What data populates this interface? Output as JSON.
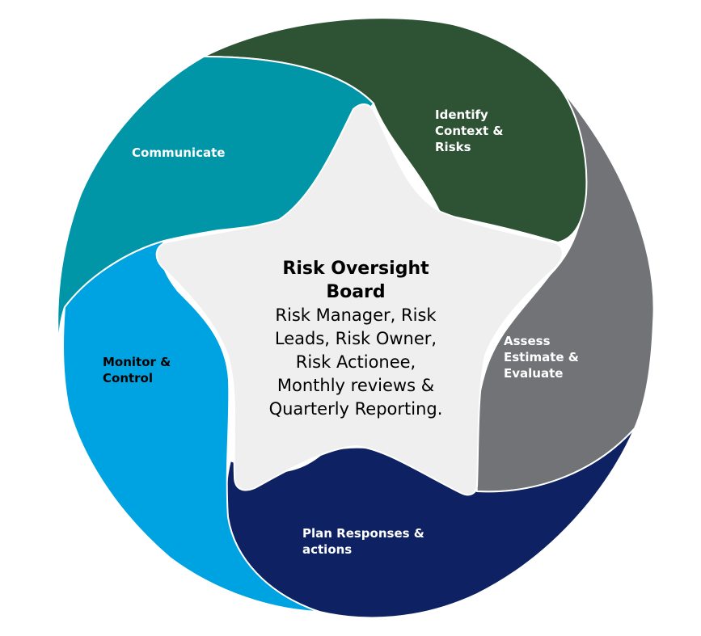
{
  "diagram": {
    "center": {
      "title": "Risk Oversight\nBoard",
      "body": "Risk Manager, Risk\nLeads, Risk Owner,\nRisk Actionee,\nMonthly reviews &\nQuarterly Reporting."
    },
    "segments": [
      {
        "id": "identify",
        "label": "Identify\nContext &\nRisks",
        "color": "#2e5234",
        "text_color": "#ffffff"
      },
      {
        "id": "assess",
        "label": "Assess\nEstimate &\nEvaluate",
        "color": "#717376",
        "text_color": "#ffffff"
      },
      {
        "id": "plan",
        "label": "Plan Responses &\nactions",
        "color": "#0d2163",
        "text_color": "#ffffff"
      },
      {
        "id": "monitor",
        "label": "Monitor &\nControl",
        "color": "#00a3e1",
        "text_color": "#000000"
      },
      {
        "id": "communicate",
        "label": "Communicate",
        "color": "#0096a8",
        "text_color": "#ffffff"
      }
    ],
    "star_color": "#efefef"
  }
}
